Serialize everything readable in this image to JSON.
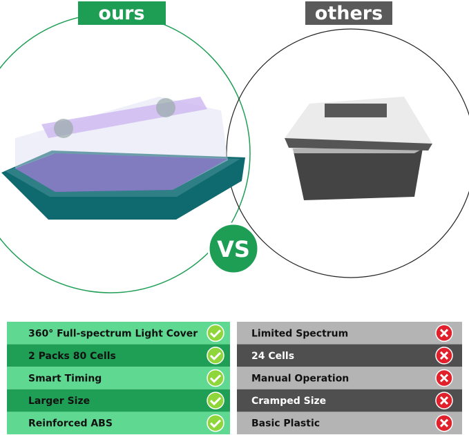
{
  "header": {
    "ours": "ours",
    "others": "others",
    "vs": "VS"
  },
  "table": {
    "rows": [
      [
        "360° Full-spectrum Light Cover",
        "Limited Spectrum"
      ],
      [
        "2 Packs 80 Cells",
        "24 Cells"
      ],
      [
        "Smart Timing",
        "Manual Operation"
      ],
      [
        "Larger Size",
        "Cramped Size"
      ],
      [
        "Reinforced ABS",
        "Basic Plastic"
      ]
    ]
  }
}
